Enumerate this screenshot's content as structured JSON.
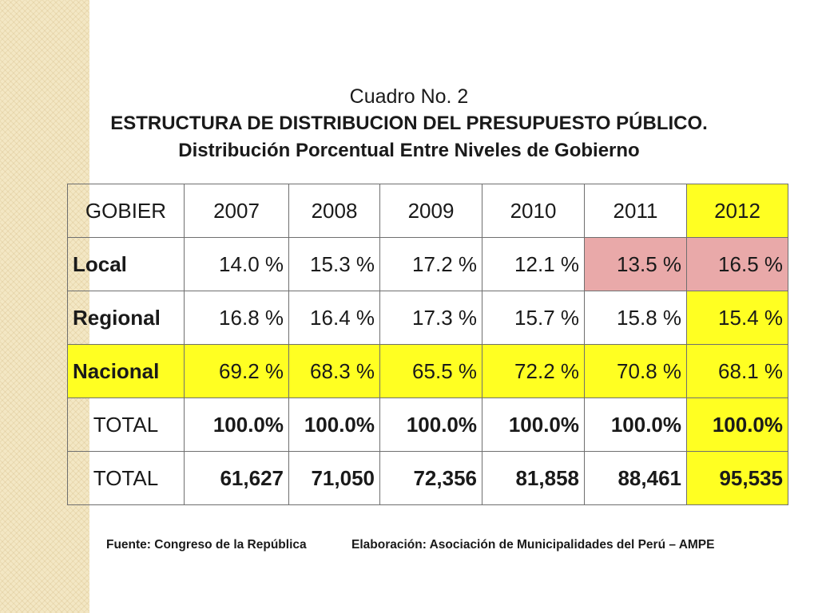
{
  "title": {
    "line1": "Cuadro No. 2",
    "line2": "ESTRUCTURA DE DISTRIBUCION DEL PRESUPUESTO PÚBLICO.",
    "line3": "Distribución Porcentual Entre Niveles de Gobierno"
  },
  "table": {
    "header": [
      "GOBIER",
      "2007",
      "2008",
      "2009",
      "2010",
      "2011",
      "2012"
    ],
    "rows": [
      {
        "label": "Local",
        "values": [
          "14.0 %",
          "15.3 %",
          "17.2 %",
          "12.1 %",
          "13.5 %",
          "16.5 %"
        ]
      },
      {
        "label": "Regional",
        "values": [
          "16.8 %",
          "16.4 %",
          "17.3 %",
          "15.7 %",
          "15.8 %",
          "15.4 %"
        ]
      },
      {
        "label": "Nacional",
        "values": [
          "69.2 %",
          "68.3 %",
          "65.5 %",
          "72.2 %",
          "70.8 %",
          "68.1 %"
        ]
      },
      {
        "label": "TOTAL",
        "values": [
          "100.0%",
          "100.0%",
          "100.0%",
          "100.0%",
          "100.0%",
          "100.0%"
        ]
      },
      {
        "label": "TOTAL",
        "values": [
          "61,627",
          "71,050",
          "72,356",
          "81,858",
          "88,461",
          "95,535"
        ]
      }
    ],
    "highlight_yellow": "#ffff22",
    "highlight_pink": "#e9a9a9"
  },
  "footer": {
    "source": "Fuente: Congreso de la República",
    "credit": "Elaboración: Asociación de Municipalidades del Perú – AMPE"
  }
}
